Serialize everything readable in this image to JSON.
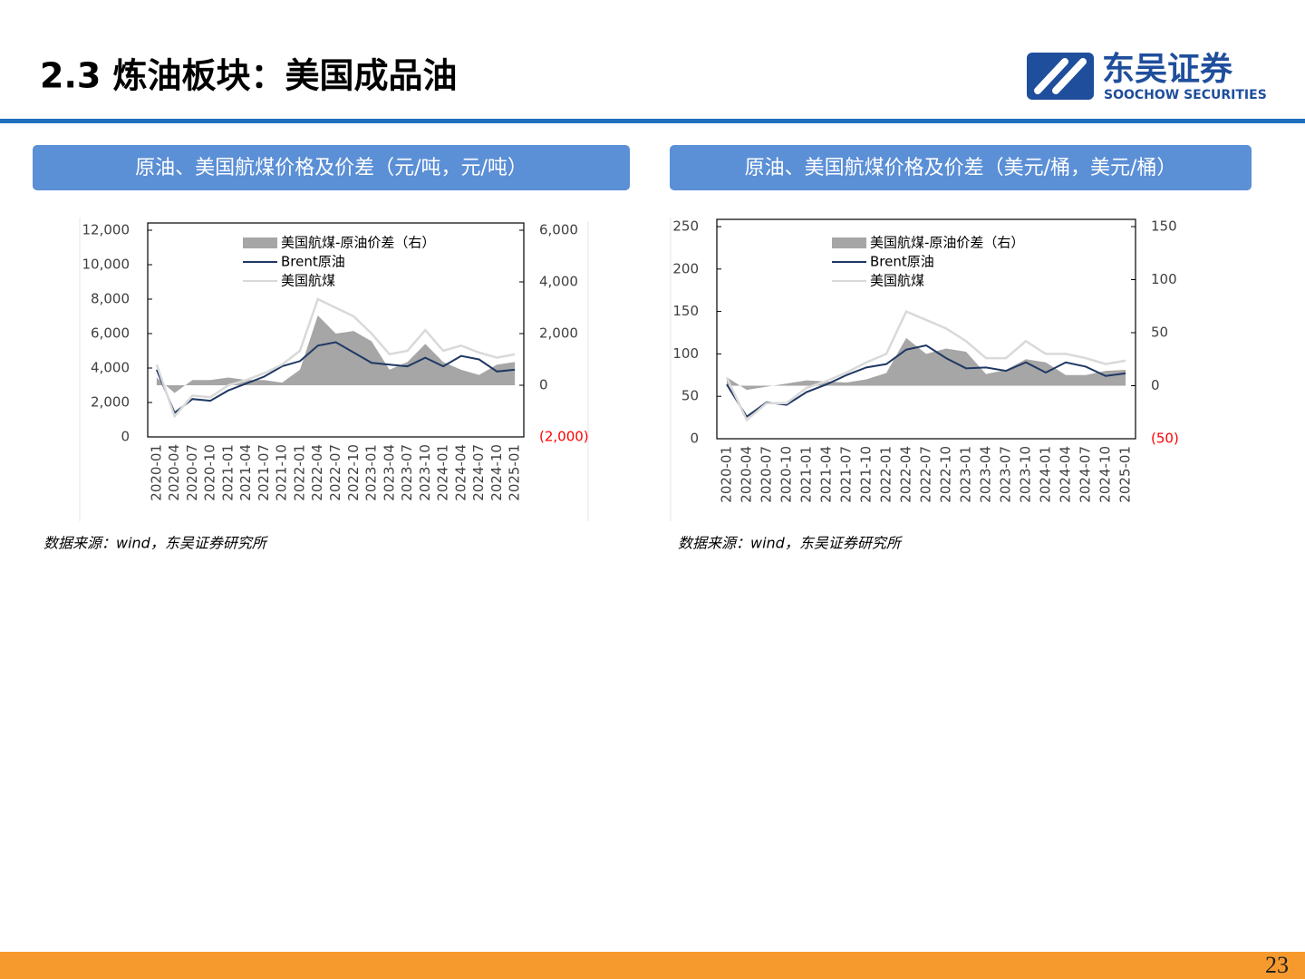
{
  "header": {
    "title": "2.3 炼油板块：美国成品油",
    "logo_cn": "东吴证券",
    "logo_en": "SOOCHOW SECURITIES"
  },
  "page_number": "23",
  "chart_data": [
    {
      "type": "line",
      "title": "原油、美国航煤价格及价差（元/吨，元/吨）",
      "source": "数据来源：wind，东吴证券研究所",
      "categories": [
        "2020-01",
        "2020-04",
        "2020-07",
        "2020-10",
        "2021-01",
        "2021-04",
        "2021-07",
        "2021-10",
        "2022-01",
        "2022-04",
        "2022-07",
        "2022-10",
        "2023-01",
        "2023-04",
        "2023-07",
        "2023-10",
        "2024-01",
        "2024-04",
        "2024-07",
        "2024-10",
        "2025-01"
      ],
      "series": [
        {
          "name": "美国航煤-原油价差（右）",
          "color": "#a6a6a6",
          "axis": "y2",
          "values": [
            300,
            -300,
            200,
            200,
            300,
            200,
            200,
            100,
            600,
            2700,
            2000,
            2100,
            1700,
            600,
            900,
            1600,
            900,
            600,
            400,
            800,
            900
          ]
        },
        {
          "name": "Brent原油",
          "color": "#1f3864",
          "values": [
            3900,
            1400,
            2200,
            2100,
            2700,
            3100,
            3500,
            4100,
            4400,
            5300,
            5500,
            4900,
            4300,
            4200,
            4100,
            4600,
            4100,
            4700,
            4500,
            3800,
            3900
          ]
        },
        {
          "name": "美国航煤",
          "color": "#d9d9d9",
          "values": [
            4200,
            1200,
            2400,
            2300,
            3000,
            3300,
            3700,
            4200,
            5000,
            8000,
            7500,
            7000,
            6000,
            4800,
            5000,
            6200,
            5000,
            5300,
            4900,
            4600,
            4800
          ]
        }
      ],
      "ylim": [
        0,
        12000
      ],
      "yticks": [
        0,
        {
          "value": 2000,
          "label": "2,000"
        },
        {
          "value": 4000,
          "label": "4,000"
        },
        {
          "value": 6000,
          "label": "6,000"
        },
        {
          "value": 8000,
          "label": "8,000"
        },
        {
          "value": 10000,
          "label": "10,000"
        },
        {
          "value": 12000,
          "label": "12,000"
        }
      ],
      "y2lim": [
        -2000,
        6000
      ],
      "y2ticks": [
        {
          "value": -2000,
          "label": "(2,000)"
        },
        0,
        {
          "value": 2000,
          "label": "2,000"
        },
        {
          "value": 4000,
          "label": "4,000"
        },
        {
          "value": 6000,
          "label": "6,000"
        }
      ],
      "negative_tick_color": "#ff0000",
      "legend": "upper-left"
    },
    {
      "type": "line",
      "title": "原油、美国航煤价格及价差（美元/桶，美元/桶）",
      "source": "数据来源：wind，东吴证券研究所",
      "categories": [
        "2020-01",
        "2020-04",
        "2020-07",
        "2020-10",
        "2021-01",
        "2021-04",
        "2021-07",
        "2021-10",
        "2022-01",
        "2022-04",
        "2022-07",
        "2022-10",
        "2023-01",
        "2023-04",
        "2023-07",
        "2023-10",
        "2024-01",
        "2024-04",
        "2024-07",
        "2024-10",
        "2025-01"
      ],
      "series": [
        {
          "name": "美国航煤-原油价差（右）",
          "color": "#a6a6a6",
          "axis": "y2",
          "values": [
            8,
            -4,
            -1,
            2,
            5,
            4,
            3,
            6,
            12,
            45,
            30,
            35,
            32,
            11,
            15,
            25,
            22,
            10,
            10,
            14,
            15
          ]
        },
        {
          "name": "Brent原油",
          "color": "#1f3864",
          "values": [
            64,
            26,
            43,
            40,
            55,
            64,
            75,
            84,
            88,
            105,
            110,
            95,
            83,
            84,
            80,
            90,
            78,
            90,
            85,
            74,
            77
          ]
        },
        {
          "name": "美国航煤",
          "color": "#d9d9d9",
          "values": [
            72,
            22,
            42,
            42,
            60,
            68,
            78,
            90,
            100,
            150,
            140,
            130,
            115,
            95,
            95,
            115,
            100,
            100,
            95,
            88,
            92
          ]
        }
      ],
      "ylim": [
        0,
        250
      ],
      "yticks": [
        0,
        50,
        100,
        150,
        200,
        250
      ],
      "y2lim": [
        -50,
        150
      ],
      "y2ticks": [
        {
          "value": -50,
          "label": "(50)"
        },
        0,
        50,
        100,
        150
      ],
      "negative_tick_color": "#ff0000",
      "legend": "upper-left"
    }
  ]
}
